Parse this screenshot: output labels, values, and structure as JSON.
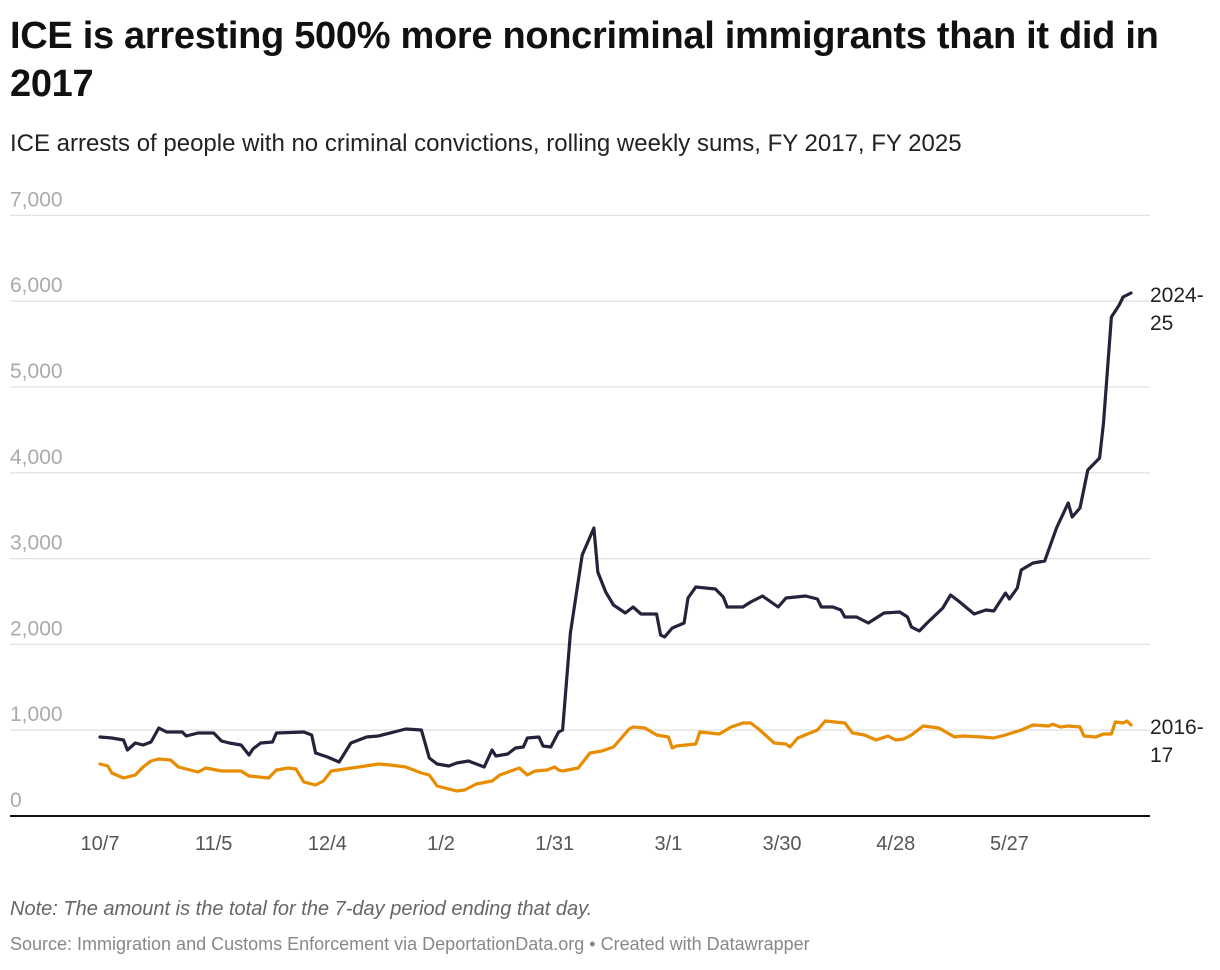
{
  "title": "ICE is arresting 500% more noncriminal immigrants than it did in 2017",
  "subtitle": "ICE arrests of people with no criminal convictions, rolling weekly sums, FY 2017, FY 2025",
  "note": "Note: The amount is the total for the 7-day period ending that day.",
  "source": "Source: Immigration and Customs Enforcement via DeportationData.org • Created with Datawrapper",
  "chart_data": {
    "type": "line",
    "title": "ICE is arresting 500% more noncriminal immigrants than it did in 2017",
    "xlabel": "",
    "ylabel": "",
    "ylim": [
      0,
      7000
    ],
    "grid": true,
    "y_ticks": [
      "0",
      "1,000",
      "2,000",
      "3,000",
      "4,000",
      "5,000",
      "6,000",
      "7,000"
    ],
    "y_tick_values": [
      0,
      1000,
      2000,
      3000,
      4000,
      5000,
      6000,
      7000
    ],
    "x_ticks": [
      "10/7",
      "11/5",
      "12/4",
      "1/2",
      "1/31",
      "3/1",
      "3/30",
      "4/28",
      "5/27"
    ],
    "legend": "direct labels at line ends (right)",
    "series": [
      {
        "name": "2024-25",
        "label_lines": [
          "2024-",
          "25"
        ],
        "color": "#26223b",
        "points": [
          [
            "10/7",
            921
          ],
          [
            "10/10",
            909
          ],
          [
            "10/13",
            886
          ],
          [
            "10/14",
            769
          ],
          [
            "10/16",
            851
          ],
          [
            "10/18",
            827
          ],
          [
            "10/20",
            862
          ],
          [
            "10/22",
            1026
          ],
          [
            "10/24",
            979
          ],
          [
            "10/28",
            979
          ],
          [
            "10/29",
            932
          ],
          [
            "11/1",
            967
          ],
          [
            "11/5",
            967
          ],
          [
            "11/7",
            874
          ],
          [
            "11/9",
            851
          ],
          [
            "11/12",
            827
          ],
          [
            "11/14",
            711
          ],
          [
            "11/15",
            781
          ],
          [
            "11/17",
            851
          ],
          [
            "11/20",
            862
          ],
          [
            "11/21",
            967
          ],
          [
            "11/28",
            979
          ],
          [
            "11/30",
            944
          ],
          [
            "12/1",
            734
          ],
          [
            "12/4",
            688
          ],
          [
            "12/7",
            629
          ],
          [
            "12/10",
            851
          ],
          [
            "12/14",
            921
          ],
          [
            "12/17",
            932
          ],
          [
            "12/22",
            991
          ],
          [
            "12/24",
            1014
          ],
          [
            "12/28",
            1002
          ],
          [
            "12/30",
            676
          ],
          [
            "1/1",
            606
          ],
          [
            "1/4",
            583
          ],
          [
            "1/6",
            618
          ],
          [
            "1/9",
            641
          ],
          [
            "1/13",
            571
          ],
          [
            "1/15",
            769
          ],
          [
            "1/16",
            699
          ],
          [
            "1/19",
            723
          ],
          [
            "1/21",
            793
          ],
          [
            "1/23",
            804
          ],
          [
            "1/24",
            909
          ],
          [
            "1/27",
            921
          ],
          [
            "1/28",
            816
          ],
          [
            "1/30",
            804
          ],
          [
            "2/1",
            979
          ],
          [
            "2/2",
            1002
          ],
          [
            "2/4",
            2133
          ],
          [
            "2/7",
            3042
          ],
          [
            "2/10",
            3357
          ],
          [
            "2/11",
            2844
          ],
          [
            "2/13",
            2611
          ],
          [
            "2/15",
            2459
          ],
          [
            "2/18",
            2366
          ],
          [
            "2/20",
            2436
          ],
          [
            "2/22",
            2354
          ],
          [
            "2/26",
            2354
          ],
          [
            "2/27",
            2110
          ],
          [
            "2/28",
            2086
          ],
          [
            "3/2",
            2191
          ],
          [
            "3/5",
            2249
          ],
          [
            "3/6",
            2541
          ],
          [
            "3/8",
            2669
          ],
          [
            "3/13",
            2646
          ],
          [
            "3/15",
            2552
          ],
          [
            "3/16",
            2436
          ],
          [
            "3/20",
            2436
          ],
          [
            "3/22",
            2494
          ],
          [
            "3/25",
            2564
          ],
          [
            "3/29",
            2436
          ],
          [
            "3/31",
            2541
          ],
          [
            "4/5",
            2564
          ],
          [
            "4/8",
            2529
          ],
          [
            "4/9",
            2436
          ],
          [
            "4/12",
            2436
          ],
          [
            "4/14",
            2401
          ],
          [
            "4/15",
            2319
          ],
          [
            "4/18",
            2319
          ],
          [
            "4/21",
            2249
          ],
          [
            "4/25",
            2366
          ],
          [
            "4/29",
            2378
          ],
          [
            "5/1",
            2319
          ],
          [
            "5/2",
            2203
          ],
          [
            "5/4",
            2156
          ],
          [
            "5/6",
            2249
          ],
          [
            "5/10",
            2424
          ],
          [
            "5/12",
            2576
          ],
          [
            "5/14",
            2506
          ],
          [
            "5/18",
            2354
          ],
          [
            "5/21",
            2401
          ],
          [
            "5/23",
            2389
          ],
          [
            "5/26",
            2599
          ],
          [
            "5/27",
            2529
          ],
          [
            "5/29",
            2657
          ],
          [
            "5/30",
            2867
          ],
          [
            "6/2",
            2949
          ],
          [
            "6/5",
            2972
          ],
          [
            "6/8",
            3357
          ],
          [
            "6/11",
            3648
          ],
          [
            "6/12",
            3485
          ],
          [
            "6/14",
            3590
          ],
          [
            "6/16",
            4033
          ],
          [
            "6/19",
            4172
          ],
          [
            "6/20",
            4580
          ],
          [
            "6/22",
            5816
          ],
          [
            "6/24",
            5956
          ],
          [
            "6/25",
            6049
          ],
          [
            "6/27",
            6096
          ]
        ]
      },
      {
        "name": "2016-17",
        "label_lines": [
          "2016-",
          "17"
        ],
        "color": "#e88c00",
        "points": [
          [
            "10/7",
            606
          ],
          [
            "10/9",
            583
          ],
          [
            "10/10",
            501
          ],
          [
            "10/13",
            443
          ],
          [
            "10/16",
            478
          ],
          [
            "10/18",
            571
          ],
          [
            "10/20",
            641
          ],
          [
            "10/22",
            664
          ],
          [
            "10/25",
            653
          ],
          [
            "10/27",
            571
          ],
          [
            "11/1",
            513
          ],
          [
            "11/3",
            559
          ],
          [
            "11/7",
            524
          ],
          [
            "11/12",
            524
          ],
          [
            "11/14",
            466
          ],
          [
            "11/19",
            443
          ],
          [
            "11/21",
            536
          ],
          [
            "11/24",
            559
          ],
          [
            "11/26",
            548
          ],
          [
            "11/28",
            396
          ],
          [
            "12/1",
            361
          ],
          [
            "12/3",
            408
          ],
          [
            "12/5",
            524
          ],
          [
            "12/12",
            571
          ],
          [
            "12/17",
            606
          ],
          [
            "12/20",
            594
          ],
          [
            "12/24",
            571
          ],
          [
            "12/28",
            501
          ],
          [
            "12/30",
            478
          ],
          [
            "1/1",
            350
          ],
          [
            "1/6",
            291
          ],
          [
            "1/8",
            303
          ],
          [
            "1/11",
            373
          ],
          [
            "1/15",
            408
          ],
          [
            "1/17",
            478
          ],
          [
            "1/22",
            559
          ],
          [
            "1/24",
            478
          ],
          [
            "1/26",
            524
          ],
          [
            "1/29",
            536
          ],
          [
            "1/31",
            571
          ],
          [
            "2/1",
            536
          ],
          [
            "2/2",
            524
          ],
          [
            "2/6",
            559
          ],
          [
            "2/9",
            734
          ],
          [
            "2/12",
            758
          ],
          [
            "2/15",
            804
          ],
          [
            "2/19",
            1014
          ],
          [
            "2/20",
            1037
          ],
          [
            "2/23",
            1026
          ],
          [
            "2/26",
            944
          ],
          [
            "3/1",
            921
          ],
          [
            "3/2",
            793
          ],
          [
            "3/3",
            816
          ],
          [
            "3/8",
            839
          ],
          [
            "3/9",
            979
          ],
          [
            "3/14",
            956
          ],
          [
            "3/17",
            1037
          ],
          [
            "3/20",
            1084
          ],
          [
            "3/22",
            1084
          ],
          [
            "3/24",
            1014
          ],
          [
            "3/28",
            851
          ],
          [
            "3/31",
            839
          ],
          [
            "4/1",
            804
          ],
          [
            "4/3",
            909
          ],
          [
            "4/8",
            1002
          ],
          [
            "4/10",
            1107
          ],
          [
            "4/15",
            1084
          ],
          [
            "4/17",
            967
          ],
          [
            "4/20",
            944
          ],
          [
            "4/23",
            886
          ],
          [
            "4/26",
            932
          ],
          [
            "4/28",
            886
          ],
          [
            "4/30",
            897
          ],
          [
            "5/2",
            944
          ],
          [
            "5/5",
            1049
          ],
          [
            "5/9",
            1026
          ],
          [
            "5/13",
            921
          ],
          [
            "5/15",
            932
          ],
          [
            "5/20",
            921
          ],
          [
            "5/23",
            909
          ],
          [
            "5/26",
            944
          ],
          [
            "5/30",
            1002
          ],
          [
            "6/2",
            1061
          ],
          [
            "6/6",
            1049
          ],
          [
            "6/7",
            1070
          ],
          [
            "6/9",
            1037
          ],
          [
            "6/11",
            1049
          ],
          [
            "6/14",
            1037
          ],
          [
            "6/15",
            932
          ],
          [
            "6/18",
            921
          ],
          [
            "6/20",
            956
          ],
          [
            "6/22",
            956
          ],
          [
            "6/23",
            1096
          ],
          [
            "6/25",
            1084
          ],
          [
            "6/26",
            1107
          ],
          [
            "6/27",
            1061
          ]
        ]
      }
    ]
  }
}
